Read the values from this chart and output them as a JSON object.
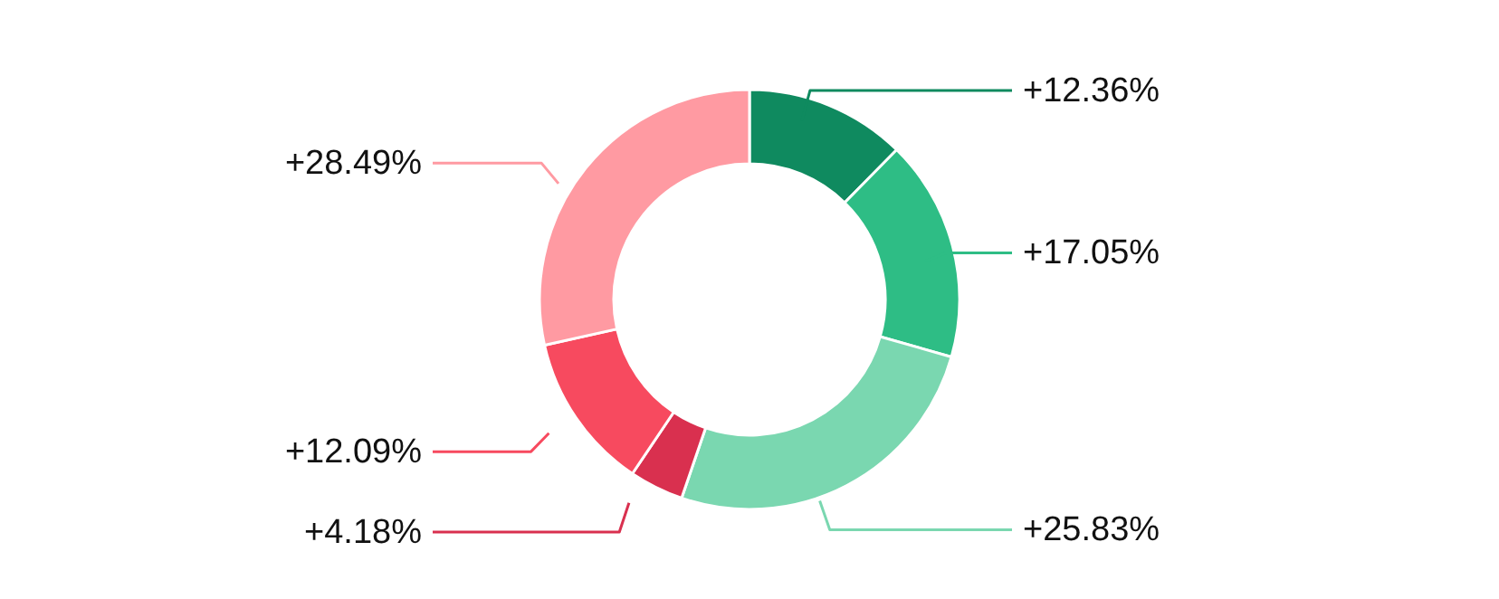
{
  "chart_data": {
    "type": "donut",
    "categories": [
      null,
      null,
      null,
      null,
      null,
      null
    ],
    "values": [
      12.36,
      17.05,
      25.83,
      4.18,
      12.09,
      28.49
    ],
    "value_labels": [
      "+12.36%",
      "+17.05%",
      "+25.83%",
      "+4.18%",
      "+12.09%",
      "+28.49%"
    ],
    "colors": [
      "#0f8a5f",
      "#2ebd85",
      "#7ad7b0",
      "#d9304f",
      "#f74a5f",
      "#ff9aa2"
    ]
  }
}
